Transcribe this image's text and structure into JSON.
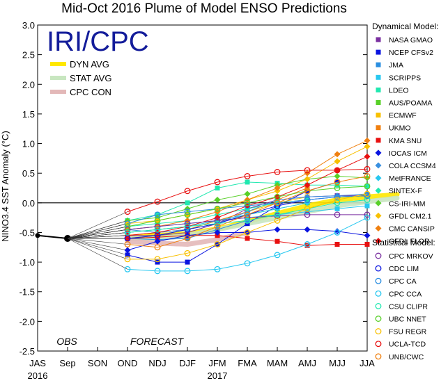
{
  "chart_data": {
    "type": "line",
    "title": "Mid-Oct 2016 Plume of Model ENSO Predictions",
    "logo_text": "IRI/CPC",
    "ylabel": "NINO3.4 SST Anomaly (°C)",
    "ylim": [
      -2.5,
      3.0
    ],
    "ytick_labels": [
      "3.0",
      "2.5",
      "2.0",
      "1.5",
      "1.0",
      "0.5",
      "0.0",
      "-0.5",
      "-1.0",
      "-1.5",
      "-2.0",
      "-2.5"
    ],
    "ytick_values": [
      3.0,
      2.5,
      2.0,
      1.5,
      1.0,
      0.5,
      0.0,
      -0.5,
      -1.0,
      -1.5,
      -2.0,
      -2.5
    ],
    "categories": [
      "JAS",
      "Sep",
      "SON",
      "OND",
      "NDJ",
      "DJF",
      "JFM",
      "FMA",
      "MAM",
      "AMJ",
      "MJJ",
      "JJA"
    ],
    "year_labels": [
      {
        "text": "2016",
        "at_index": 0
      },
      {
        "text": "2017",
        "at_index": 6
      }
    ],
    "obs_label": "OBS",
    "forecast_label": "FORECAST",
    "observed": [
      -0.55,
      -0.6
    ],
    "avg_legend": [
      {
        "name": "DYN AVG",
        "color": "#ffe800"
      },
      {
        "name": "STAT AVG",
        "color": "#c8e6c0"
      },
      {
        "name": "CPC CON",
        "color": "#e3b8b8"
      }
    ],
    "averages": [
      {
        "name": "DYN AVG",
        "color": "#ffe800",
        "values": [
          -0.58,
          -0.55,
          -0.52,
          -0.44,
          -0.32,
          -0.18,
          -0.05,
          0.05,
          0.1,
          0.14
        ]
      },
      {
        "name": "STAT AVG",
        "color": "#c8e6c0",
        "values": [
          -0.6,
          -0.6,
          -0.55,
          -0.45,
          -0.35,
          -0.25,
          -0.15,
          -0.05,
          0.02,
          0.08
        ]
      },
      {
        "name": "CPC CON",
        "color": "#e3b8b8",
        "values": [
          -0.65,
          -0.68,
          -0.7,
          -0.62,
          -0.5
        ]
      }
    ],
    "dyn_heading": "Dynamical Model:",
    "stat_heading": "Statistical Model:",
    "dynamical_models": [
      {
        "name": "NASA GMAO",
        "color": "#7a2fa0",
        "marker": "square",
        "values": [
          -0.55,
          -0.55,
          -0.5,
          -0.35,
          -0.1,
          0.05,
          0.1,
          0.12,
          0.12
        ]
      },
      {
        "name": "NCEP CFSv2",
        "color": "#0a14e0",
        "marker": "square",
        "values": [
          -0.88,
          -1.0,
          -1.0,
          -0.7,
          -0.35,
          -0.05,
          0.2,
          0.35
        ]
      },
      {
        "name": "JMA",
        "color": "#2a8ee0",
        "marker": "square",
        "values": [
          -0.6,
          -0.62,
          -0.6,
          -0.45,
          -0.3
        ]
      },
      {
        "name": "SCRIPPS",
        "color": "#28c8f0",
        "marker": "square",
        "values": [
          -0.45,
          -0.4,
          -0.35,
          -0.3,
          -0.25,
          -0.2,
          -0.15,
          -0.1,
          -0.05
        ]
      },
      {
        "name": "LDEO",
        "color": "#20e8b0",
        "marker": "square",
        "values": [
          -0.3,
          -0.2,
          0.0,
          0.25,
          0.35,
          0.33,
          0.3,
          0.3,
          0.28
        ]
      },
      {
        "name": "AUS/POAMA",
        "color": "#58d028",
        "marker": "square",
        "values": [
          -0.6,
          -0.55,
          -0.45,
          -0.3,
          -0.2,
          -0.1,
          0.0
        ]
      },
      {
        "name": "ECMWF",
        "color": "#f8c000",
        "marker": "square",
        "values": [
          -0.5,
          -0.45,
          -0.4,
          -0.3,
          -0.15,
          0.0,
          0.1
        ]
      },
      {
        "name": "UKMO",
        "color": "#f08010",
        "marker": "square",
        "values": [
          -0.55,
          -0.5,
          -0.45,
          -0.3,
          -0.15,
          0.05,
          0.25
        ]
      },
      {
        "name": "KMA SNU",
        "color": "#e81010",
        "marker": "square",
        "values": [
          -0.6,
          -0.58,
          -0.55,
          -0.55,
          -0.6,
          -0.65,
          -0.72,
          -0.7,
          -0.7
        ]
      },
      {
        "name": "IOCAS ICM",
        "color": "#0a14e0",
        "marker": "diamond",
        "values": [
          -0.8,
          -0.65,
          -0.55,
          -0.5,
          -0.5,
          -0.45,
          -0.45,
          -0.48,
          -0.55
        ]
      },
      {
        "name": "COLA CCSM4",
        "color": "#3a90e0",
        "marker": "diamond",
        "values": [
          -0.45,
          -0.5,
          -0.45,
          -0.35,
          -0.15,
          0.05,
          0.1,
          0.12,
          0.15
        ]
      },
      {
        "name": "MetFRANCE",
        "color": "#28c8f0",
        "marker": "diamond",
        "values": [
          -0.5,
          -0.45,
          -0.4,
          -0.3,
          -0.2,
          -0.1,
          0.0
        ]
      },
      {
        "name": "SINTEX-F",
        "color": "#20e8b0",
        "marker": "diamond",
        "values": [
          -0.4,
          -0.35,
          -0.3,
          -0.2,
          -0.1,
          0.0,
          0.05
        ]
      },
      {
        "name": "CS-IRI-MM",
        "color": "#58d028",
        "marker": "diamond",
        "values": [
          -0.3,
          -0.25,
          -0.1,
          0.05,
          0.15,
          0.3,
          0.4,
          0.45,
          0.42
        ]
      },
      {
        "name": "GFDL CM2.1",
        "color": "#f8c000",
        "marker": "diamond",
        "values": [
          -0.35,
          -0.3,
          -0.2,
          -0.1,
          0.05,
          0.2,
          0.4,
          0.7,
          0.95
        ]
      },
      {
        "name": "CMC CANSIP",
        "color": "#f08010",
        "marker": "diamond",
        "values": [
          -0.45,
          -0.4,
          -0.3,
          -0.15,
          0.05,
          0.25,
          0.5,
          0.82,
          1.05
        ]
      },
      {
        "name": "GFDL FLOR",
        "color": "#e81010",
        "marker": "diamond",
        "values": [
          -0.55,
          -0.5,
          -0.4,
          -0.25,
          -0.05,
          0.1,
          0.3,
          0.55,
          0.78
        ]
      }
    ],
    "statistical_models": [
      {
        "name": "CPC MRKOV",
        "color": "#7a2fa0",
        "marker": "circle",
        "values": [
          -0.45,
          -0.4,
          -0.35,
          -0.3,
          -0.25,
          -0.22,
          -0.2,
          -0.2,
          -0.2
        ]
      },
      {
        "name": "CDC LIM",
        "color": "#0a14e0",
        "marker": "circle",
        "values": [
          -0.6,
          -0.55,
          -0.45,
          -0.35,
          -0.2,
          -0.05,
          0.05,
          0.1,
          0.12
        ]
      },
      {
        "name": "CPC CA",
        "color": "#2a8ee0",
        "marker": "circle",
        "values": [
          -0.35,
          -0.2,
          -0.15,
          -0.1,
          -0.05,
          0.0,
          0.05,
          0.1,
          0.12
        ]
      },
      {
        "name": "CPC CCA",
        "color": "#28c8f0",
        "marker": "circle",
        "values": [
          -1.12,
          -1.15,
          -1.15,
          -1.12,
          -1.02,
          -0.88,
          -0.7,
          -0.5,
          -0.25
        ]
      },
      {
        "name": "CSU CLIPR",
        "color": "#20e8b0",
        "marker": "circle",
        "values": [
          -0.5,
          -0.45,
          -0.4,
          -0.35,
          -0.3,
          -0.2,
          -0.1,
          0.0,
          0.05
        ]
      },
      {
        "name": "UBC NNET",
        "color": "#58d028",
        "marker": "circle",
        "values": [
          -0.4,
          -0.3,
          -0.2,
          -0.1,
          0.0,
          0.1,
          0.2,
          0.25,
          0.28
        ]
      },
      {
        "name": "FSU REGR",
        "color": "#f8c000",
        "marker": "circle",
        "values": [
          -0.95,
          -0.95,
          -0.85,
          -0.7,
          -0.5,
          -0.3,
          -0.1,
          0.05,
          0.15
        ]
      },
      {
        "name": "UCLA-TCD",
        "color": "#e81010",
        "marker": "circle",
        "values": [
          -0.15,
          0.02,
          0.2,
          0.35,
          0.45,
          0.52,
          0.55,
          0.55,
          0.57
        ]
      },
      {
        "name": "UNB/CWC",
        "color": "#f08010",
        "marker": "circle",
        "values": [
          -0.7,
          -0.75,
          -0.6,
          -0.4,
          -0.2,
          0.0,
          0.2,
          0.35,
          0.45
        ]
      }
    ]
  }
}
